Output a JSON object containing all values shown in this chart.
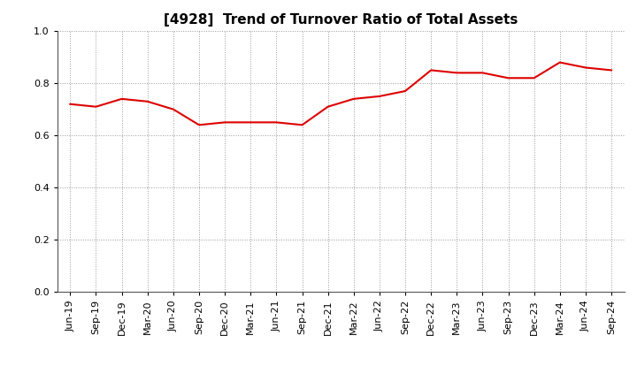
{
  "title": "[4928]  Trend of Turnover Ratio of Total Assets",
  "x_labels": [
    "Jun-19",
    "Sep-19",
    "Dec-19",
    "Mar-20",
    "Jun-20",
    "Sep-20",
    "Dec-20",
    "Mar-21",
    "Jun-21",
    "Sep-21",
    "Dec-21",
    "Mar-22",
    "Jun-22",
    "Sep-22",
    "Dec-22",
    "Mar-23",
    "Jun-23",
    "Sep-23",
    "Dec-23",
    "Mar-24",
    "Jun-24",
    "Sep-24"
  ],
  "values": [
    0.72,
    0.71,
    0.74,
    0.73,
    0.7,
    0.64,
    0.65,
    0.65,
    0.65,
    0.64,
    0.71,
    0.74,
    0.75,
    0.77,
    0.85,
    0.84,
    0.84,
    0.82,
    0.82,
    0.88,
    0.86,
    0.85
  ],
  "line_color": "#dd0000",
  "line_width": 1.5,
  "ylim": [
    0.0,
    1.0
  ],
  "yticks": [
    0.0,
    0.2,
    0.4,
    0.6,
    0.8,
    1.0
  ],
  "background_color": "#ffffff",
  "grid_color": "#999999",
  "title_fontsize": 11,
  "tick_fontsize": 8,
  "plot_bg_color": "#ffffff"
}
